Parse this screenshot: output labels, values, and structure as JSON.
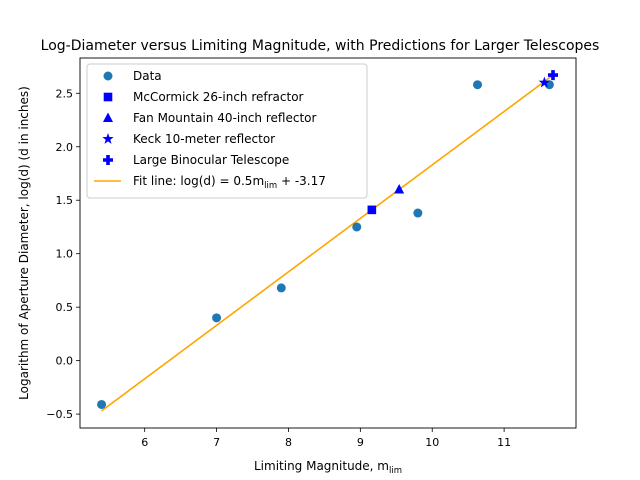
{
  "chart_data": {
    "type": "scatter",
    "title": "Log-Diameter versus Limiting Magnitude, with Predictions for Larger Telescopes",
    "xlabel": "Limiting Magnitude, m",
    "xlabel_sub": "lim",
    "ylabel": "Logarithm of Aperture Diameter, log(d) (d in inches)",
    "xlim": [
      5.1,
      12.0
    ],
    "ylim": [
      -0.63,
      2.83
    ],
    "x_ticks": [
      6,
      7,
      8,
      9,
      10,
      11
    ],
    "y_ticks": [
      -0.5,
      0.0,
      0.5,
      1.0,
      1.5,
      2.0,
      2.5
    ],
    "x_tick_labels": [
      "6",
      "7",
      "8",
      "9",
      "10",
      "11"
    ],
    "y_tick_labels": [
      "−0.5",
      "0.0",
      "0.5",
      "1.0",
      "1.5",
      "2.0",
      "2.5"
    ],
    "grid": false,
    "legend_position": "upper-left",
    "series": [
      {
        "name": "Data",
        "marker": "circle",
        "color": "#1f77b4",
        "x": [
          5.4,
          7.0,
          7.9,
          8.95,
          9.8,
          10.63,
          11.63
        ],
        "y": [
          -0.41,
          0.4,
          0.68,
          1.25,
          1.38,
          2.58,
          2.58
        ]
      },
      {
        "name": "McCormick 26-inch refractor",
        "marker": "square",
        "color": "#0000ff",
        "x": [
          9.16
        ],
        "y": [
          1.41
        ]
      },
      {
        "name": "Fan Mountain 40-inch reflector",
        "marker": "triangle",
        "color": "#0000ff",
        "x": [
          9.54
        ],
        "y": [
          1.6
        ]
      },
      {
        "name": "Keck 10-meter reflector",
        "marker": "star",
        "color": "#0000ff",
        "x": [
          11.56
        ],
        "y": [
          2.6
        ]
      },
      {
        "name": "Large Binocular Telescope",
        "marker": "plus",
        "color": "#0000ff",
        "x": [
          11.68
        ],
        "y": [
          2.67
        ]
      }
    ],
    "fit_line": {
      "label_prefix": "Fit line: log(d) = 0.5m",
      "label_sub": "lim",
      "label_suffix": " + -3.17",
      "color": "#ffa500",
      "x": [
        5.4,
        11.68
      ],
      "y": [
        -0.47,
        2.67
      ]
    }
  }
}
